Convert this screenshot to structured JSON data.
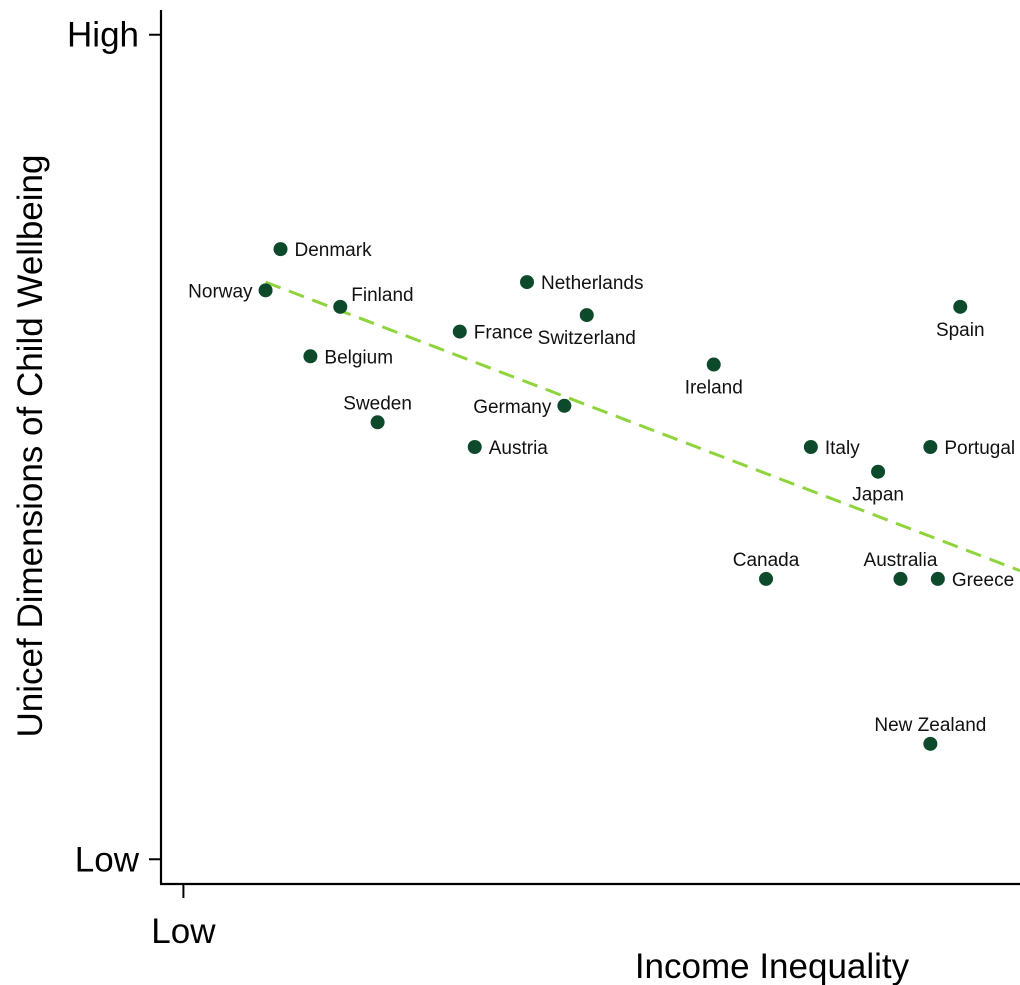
{
  "chart_data": {
    "type": "scatter",
    "xlabel": "Income Inequality",
    "ylabel": "Unicef Dimensions of Child Wellbeing",
    "x_ticks": [
      {
        "value": 0,
        "label": "Low"
      }
    ],
    "y_ticks": [
      {
        "value": 0,
        "label": "Low"
      },
      {
        "value": 10,
        "label": "High"
      }
    ],
    "xlim": [
      -0.3,
      11.2
    ],
    "ylim": [
      -0.3,
      10.3
    ],
    "grid": false,
    "legend": "none",
    "point_color": "#0d4a2c",
    "trend_color": "#8fd43c",
    "trend_line": {
      "x": [
        1.1,
        11.2
      ],
      "y": [
        7.0,
        3.5
      ]
    },
    "points": [
      {
        "name": "Denmark",
        "x": 1.3,
        "y": 7.4,
        "pos": "right"
      },
      {
        "name": "Norway",
        "x": 1.1,
        "y": 6.9,
        "pos": "left"
      },
      {
        "name": "Finland",
        "x": 2.1,
        "y": 6.7,
        "pos": "top-right"
      },
      {
        "name": "Belgium",
        "x": 1.7,
        "y": 6.1,
        "pos": "right"
      },
      {
        "name": "Sweden",
        "x": 2.6,
        "y": 5.3,
        "pos": "above"
      },
      {
        "name": "France",
        "x": 3.7,
        "y": 6.4,
        "pos": "right"
      },
      {
        "name": "Austria",
        "x": 3.9,
        "y": 5.0,
        "pos": "right"
      },
      {
        "name": "Netherlands",
        "x": 4.6,
        "y": 7.0,
        "pos": "right"
      },
      {
        "name": "Germany",
        "x": 5.1,
        "y": 5.5,
        "pos": "left"
      },
      {
        "name": "Switzerland",
        "x": 5.4,
        "y": 6.6,
        "pos": "below"
      },
      {
        "name": "Ireland",
        "x": 7.1,
        "y": 6.0,
        "pos": "below"
      },
      {
        "name": "Italy",
        "x": 8.4,
        "y": 5.0,
        "pos": "right"
      },
      {
        "name": "Japan",
        "x": 9.3,
        "y": 4.7,
        "pos": "below"
      },
      {
        "name": "Portugal",
        "x": 10.0,
        "y": 5.0,
        "pos": "right"
      },
      {
        "name": "Spain",
        "x": 10.4,
        "y": 6.7,
        "pos": "below"
      },
      {
        "name": "Canada",
        "x": 7.8,
        "y": 3.4,
        "pos": "above"
      },
      {
        "name": "Australia",
        "x": 9.6,
        "y": 3.4,
        "pos": "above"
      },
      {
        "name": "Greece",
        "x": 10.1,
        "y": 3.4,
        "pos": "right"
      },
      {
        "name": "New Zealand",
        "x": 10.0,
        "y": 1.4,
        "pos": "above"
      }
    ]
  }
}
